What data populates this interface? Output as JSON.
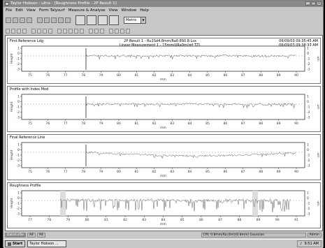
{
  "window": {
    "title": "Taylor Hobson - ultra - [Roughness Profile : 2P Result 1]"
  },
  "menu": [
    "File",
    "Edit",
    "View",
    "Form Talysurf",
    "Measure & Analyse",
    "View",
    "Window",
    "Help"
  ],
  "toolbar": {
    "units_value": "Metric"
  },
  "panels": [
    {
      "title": "First Reference Ldg",
      "info_center": [
        "2P Result 1 - Ru1Sd4.8mm/Ra0.8S0.8.Lsx",
        "Linear Measurement 1 - 15mm@Ra0m/ref TZL"
      ],
      "info_right": [
        "06/09/03 09:35:45 AM",
        "06/09/03 09:38:33 AM"
      ],
      "ylabel": "Height",
      "ylabel_right": "um",
      "xlabel": "mm",
      "yticks": [
        "1",
        "0",
        "-1",
        "-2",
        "-3"
      ],
      "xticks": [
        "75",
        "76",
        "77",
        "78",
        "79",
        "80",
        "81",
        "82",
        "83",
        "84",
        "85",
        "86",
        "87",
        "88",
        "89",
        "90"
      ]
    },
    {
      "title": "Profile with Index Mod",
      "ylabel": "Height",
      "ylabel_right": "um",
      "xlabel": "mm",
      "yticks": [
        "1",
        "0",
        "-1",
        "-2",
        "-3"
      ],
      "xticks": [
        "75",
        "76",
        "77",
        "78",
        "79",
        "80",
        "81",
        "82",
        "83",
        "84",
        "85",
        "86",
        "87",
        "88",
        "89",
        "90"
      ]
    },
    {
      "title": "Final Reference Line",
      "ylabel": "Height",
      "ylabel_right": "um",
      "xlabel": "mm",
      "yticks": [
        "1",
        "0",
        "-1",
        "-2",
        "-3"
      ],
      "xticks": [
        "75",
        "76",
        "77",
        "78",
        "79",
        "80",
        "81",
        "82",
        "83",
        "84",
        "85",
        "86",
        "87",
        "88",
        "89",
        "90"
      ]
    },
    {
      "title": "Roughness Profile",
      "ylabel": "Height",
      "ylabel_right": "um",
      "xlabel": "mm",
      "yticks": [
        "1",
        "0",
        "-1",
        "-2",
        "-3"
      ],
      "xticks": [
        "77",
        "78",
        "79",
        "80",
        "81",
        "82",
        "83",
        "84",
        "85",
        "86",
        "87",
        "88",
        "89",
        "90",
        "91"
      ]
    }
  ],
  "status": {
    "tabs": [
      "Data/Lsfile",
      "A4",
      "A4"
    ],
    "message": "Cfit. 0.8mm/Ra.(0m)(0.8mm) Gaussian",
    "right": "Admin"
  },
  "taskbar": {
    "start_label": "Start",
    "task_label": "Taylor Hobson ...",
    "tray_time": "9:51 AM"
  }
}
